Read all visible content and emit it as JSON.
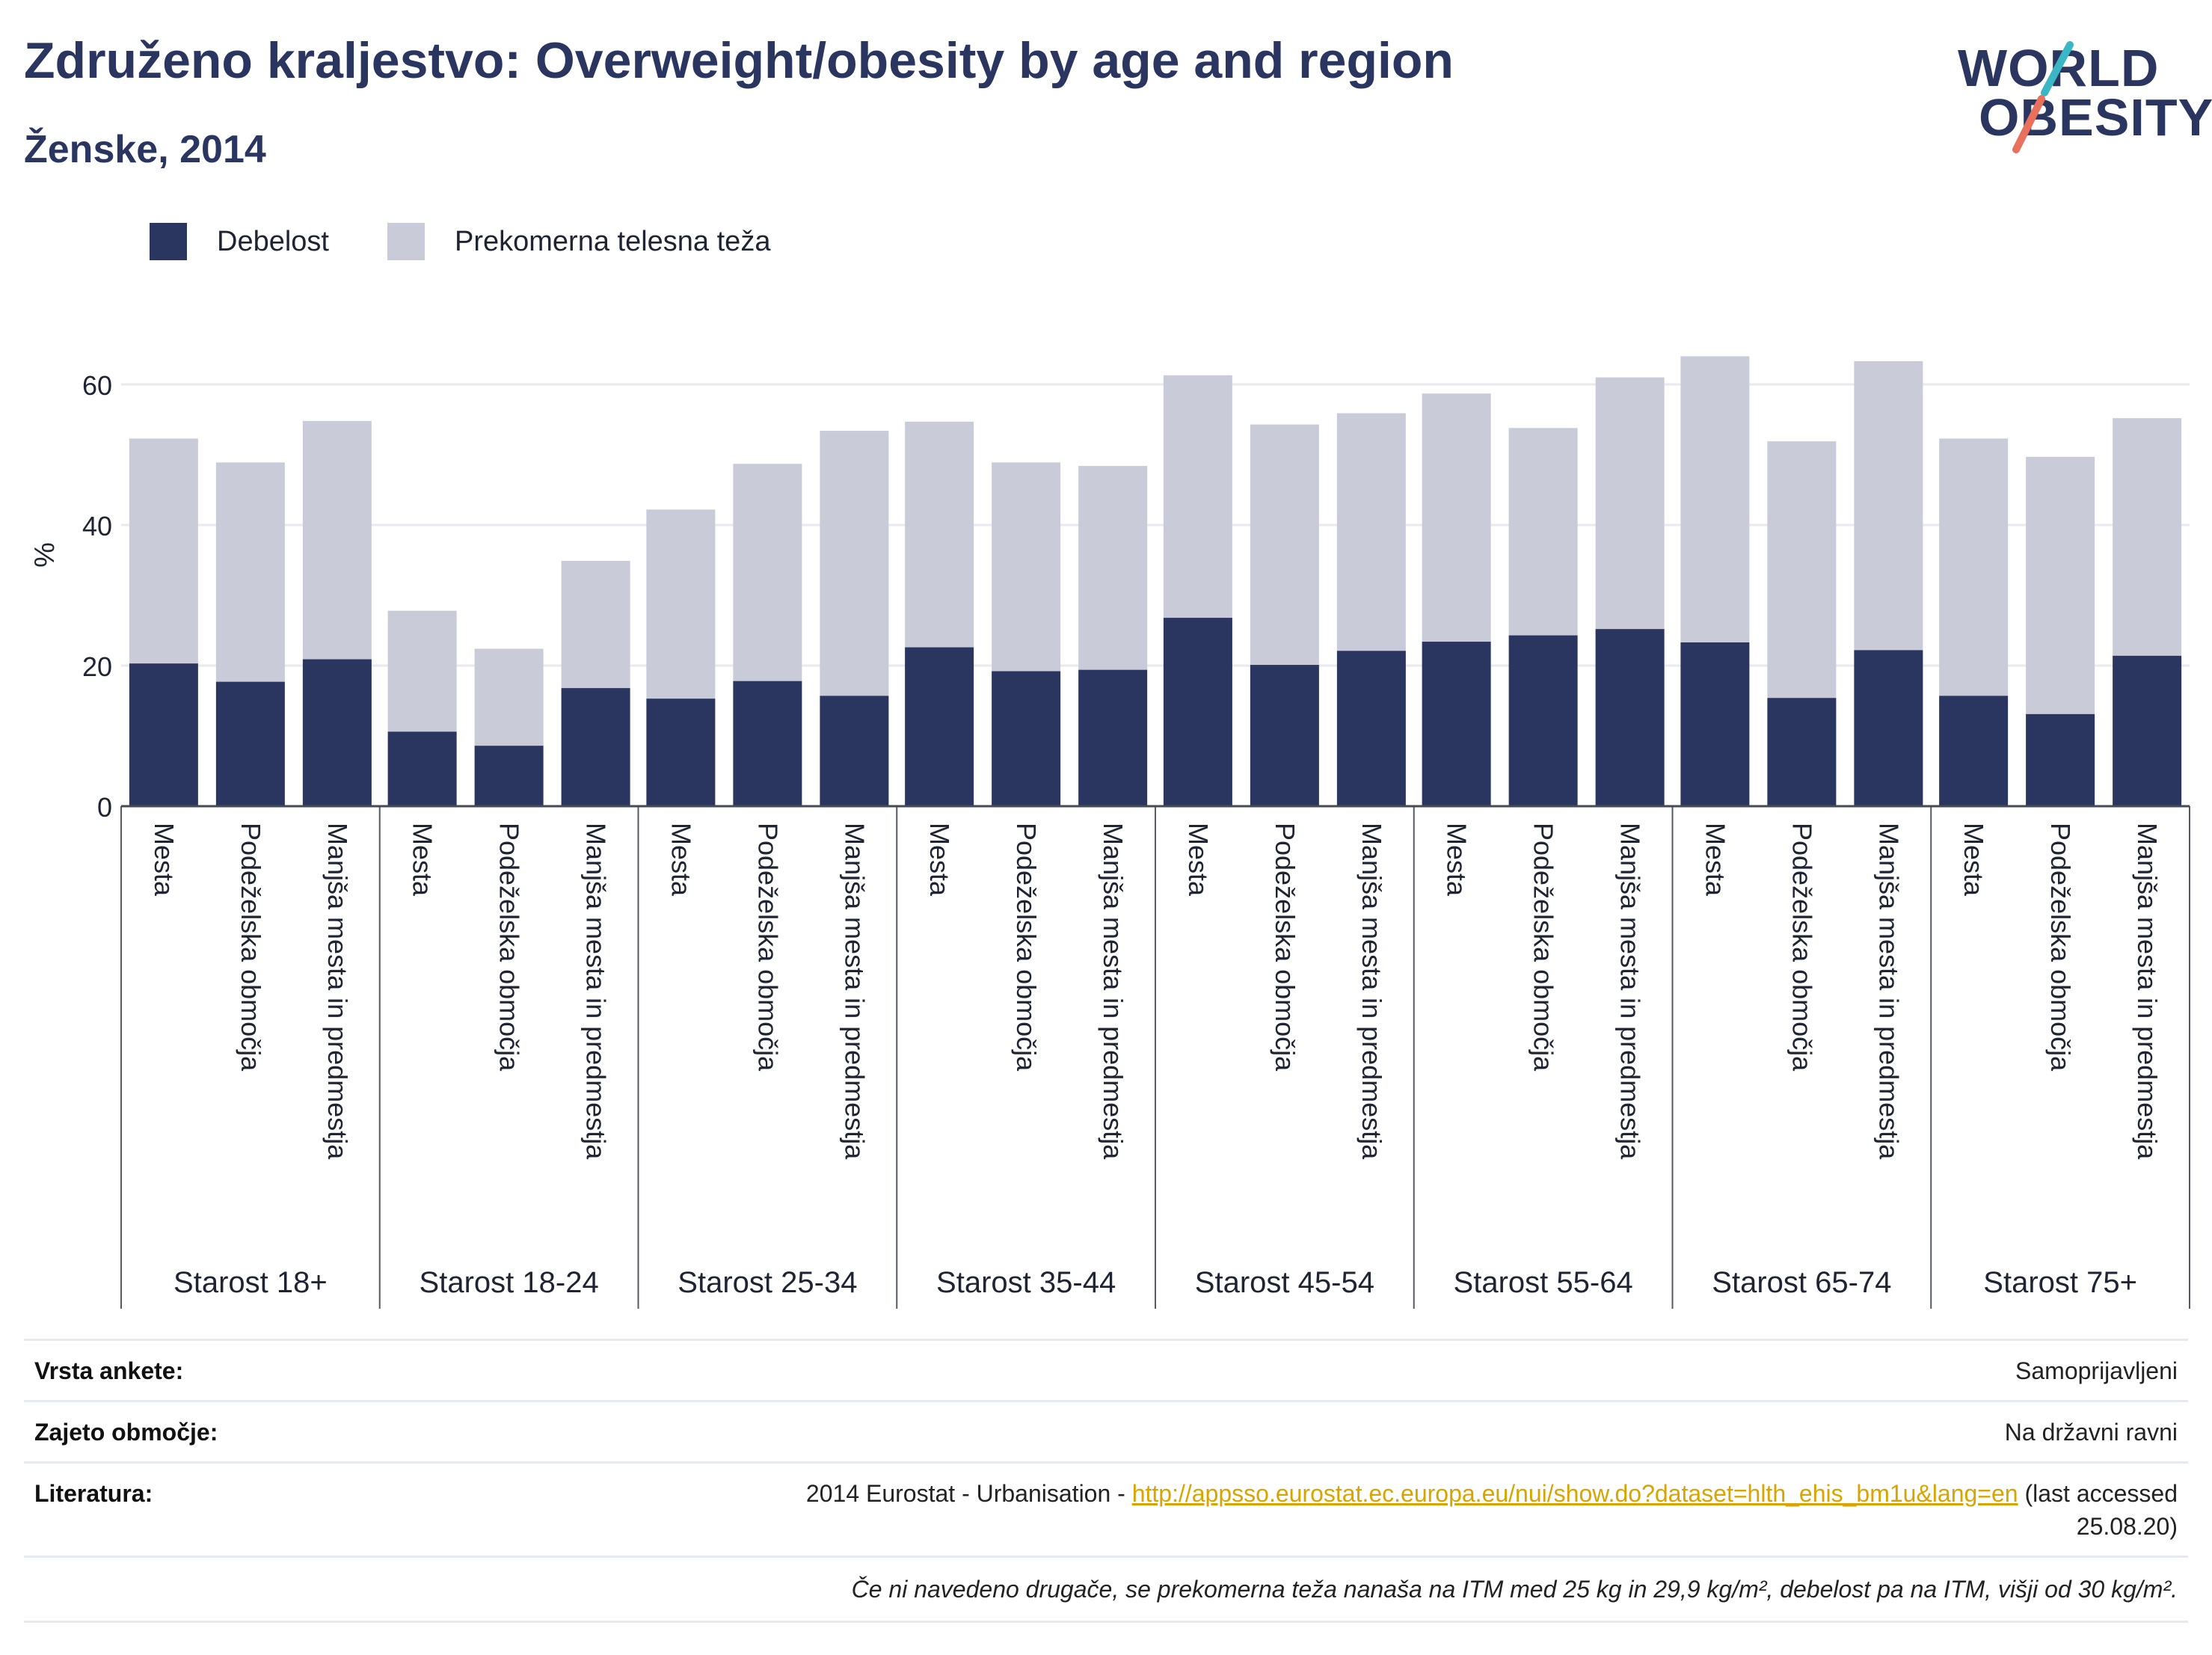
{
  "header": {
    "title": "Združeno kraljestvo: Overweight/obesity by age and region",
    "subtitle": "Ženske, 2014"
  },
  "logo": {
    "line1": "WORLD",
    "line2": "OBESITY",
    "colors": {
      "text": "#2a3560",
      "slash_top": "#3bb6c4",
      "slash_bottom": "#e8705c"
    }
  },
  "legend": {
    "items": [
      {
        "label": "Debelost",
        "color": "#2a3560"
      },
      {
        "label": "Prekomerna telesna teža",
        "color": "#c9ccd8"
      }
    ]
  },
  "chart_data": {
    "type": "bar",
    "stacked": true,
    "ylabel": "%",
    "ylim": [
      0,
      70
    ],
    "yticks": [
      0,
      20,
      40,
      60
    ],
    "grid": true,
    "legend_position": "top-left",
    "colors": {
      "obesity": "#2a3560",
      "overweight": "#c9ccd8"
    },
    "groups": [
      {
        "label": "Starost 18+",
        "bars": [
          {
            "category": "Mesta",
            "obesity": 20.3,
            "total": 52.3
          },
          {
            "category": "Podeželska območja",
            "obesity": 17.7,
            "total": 48.9
          },
          {
            "category": "Manjša mesta in predmestja",
            "obesity": 20.9,
            "total": 54.8
          }
        ]
      },
      {
        "label": "Starost 18-24",
        "bars": [
          {
            "category": "Mesta",
            "obesity": 10.6,
            "total": 27.8
          },
          {
            "category": "Podeželska območja",
            "obesity": 8.6,
            "total": 22.4
          },
          {
            "category": "Manjša mesta in predmestja",
            "obesity": 16.8,
            "total": 34.9
          }
        ]
      },
      {
        "label": "Starost 25-34",
        "bars": [
          {
            "category": "Mesta",
            "obesity": 15.3,
            "total": 42.2
          },
          {
            "category": "Podeželska območja",
            "obesity": 17.8,
            "total": 48.7
          },
          {
            "category": "Manjša mesta in predmestja",
            "obesity": 15.7,
            "total": 53.4
          }
        ]
      },
      {
        "label": "Starost 35-44",
        "bars": [
          {
            "category": "Mesta",
            "obesity": 22.6,
            "total": 54.7
          },
          {
            "category": "Podeželska območja",
            "obesity": 19.2,
            "total": 48.9
          },
          {
            "category": "Manjša mesta in predmestja",
            "obesity": 19.4,
            "total": 48.4
          }
        ]
      },
      {
        "label": "Starost 45-54",
        "bars": [
          {
            "category": "Mesta",
            "obesity": 26.8,
            "total": 61.3
          },
          {
            "category": "Podeželska območja",
            "obesity": 20.1,
            "total": 54.3
          },
          {
            "category": "Manjša mesta in predmestja",
            "obesity": 22.1,
            "total": 55.9
          }
        ]
      },
      {
        "label": "Starost 55-64",
        "bars": [
          {
            "category": "Mesta",
            "obesity": 23.4,
            "total": 58.7
          },
          {
            "category": "Podeželska območja",
            "obesity": 24.3,
            "total": 53.8
          },
          {
            "category": "Manjša mesta in predmestja",
            "obesity": 25.2,
            "total": 61.0
          }
        ]
      },
      {
        "label": "Starost 65-74",
        "bars": [
          {
            "category": "Mesta",
            "obesity": 23.3,
            "total": 64.0
          },
          {
            "category": "Podeželska območja",
            "obesity": 15.4,
            "total": 51.9
          },
          {
            "category": "Manjša mesta in predmestja",
            "obesity": 22.2,
            "total": 63.3
          }
        ]
      },
      {
        "label": "Starost 75+",
        "bars": [
          {
            "category": "Mesta",
            "obesity": 15.7,
            "total": 52.3
          },
          {
            "category": "Podeželska območja",
            "obesity": 13.1,
            "total": 49.7
          },
          {
            "category": "Manjša mesta in predmestja",
            "obesity": 21.4,
            "total": 55.2
          }
        ]
      }
    ]
  },
  "meta": {
    "survey_type": {
      "key": "Vrsta ankete:",
      "value": "Samoprijavljeni"
    },
    "coverage": {
      "key": "Zajeto območje:",
      "value": "Na državni ravni"
    },
    "references": {
      "key": "Literatura:",
      "prefix": "2014 Eurostat - Urbanisation - ",
      "link": "http://appsso.eurostat.ec.europa.eu/nui/show.do?dataset=hlth_ehis_bm1u&lang=en",
      "suffix": " (last accessed",
      "suffix2": "25.08.20)"
    },
    "note": "Če ni navedeno drugače, se prekomerna teža nanaša na ITM med 25 kg in 29,9 kg/m², debelost pa na ITM, višji od 30 kg/m²."
  }
}
